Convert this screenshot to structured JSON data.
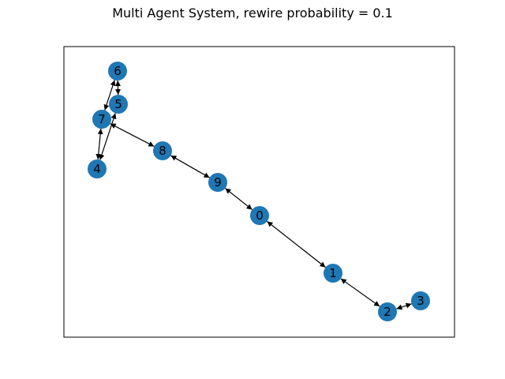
{
  "title": "Multi Agent System, rewire probability = 0.1",
  "style": {
    "node_color": "#1f77b4",
    "edge_color": "#000000",
    "frame_color": "#000000"
  },
  "graph": {
    "nodes": [
      {
        "id": "0"
      },
      {
        "id": "1"
      },
      {
        "id": "2"
      },
      {
        "id": "3"
      },
      {
        "id": "4"
      },
      {
        "id": "5"
      },
      {
        "id": "6"
      },
      {
        "id": "7"
      },
      {
        "id": "8"
      },
      {
        "id": "9"
      }
    ],
    "edges": [
      {
        "source": "6",
        "target": "5",
        "bidirectional": true
      },
      {
        "source": "6",
        "target": "7",
        "bidirectional": true
      },
      {
        "source": "5",
        "target": "4",
        "bidirectional": true
      },
      {
        "source": "7",
        "target": "4",
        "bidirectional": true
      },
      {
        "source": "7",
        "target": "8",
        "bidirectional": true
      },
      {
        "source": "8",
        "target": "9",
        "bidirectional": true
      },
      {
        "source": "9",
        "target": "0",
        "bidirectional": true
      },
      {
        "source": "0",
        "target": "1",
        "bidirectional": true
      },
      {
        "source": "1",
        "target": "2",
        "bidirectional": true
      },
      {
        "source": "2",
        "target": "3",
        "bidirectional": true
      }
    ]
  }
}
